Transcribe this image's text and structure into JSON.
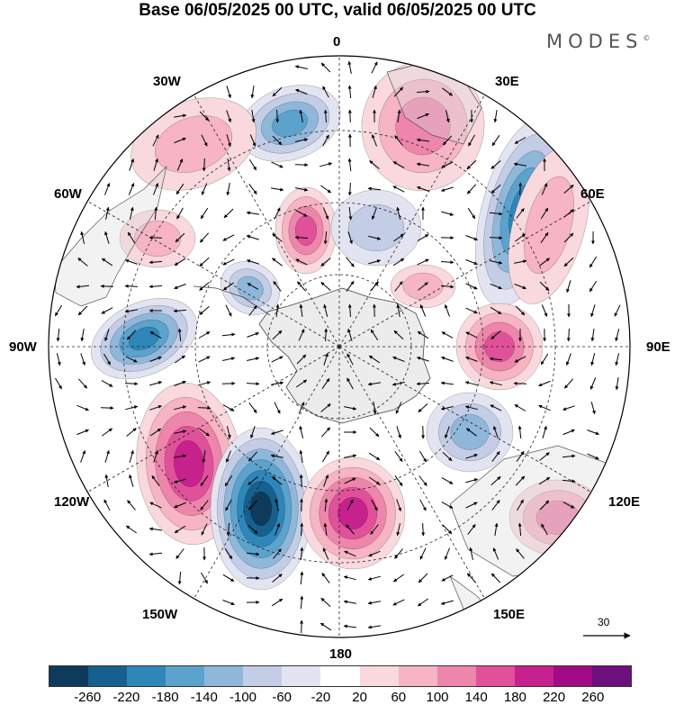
{
  "header": {
    "title": "Base 06/05/2025 00 UTC, valid 06/05/2025 00 UTC",
    "brand": "MODES",
    "brand_mark": "©"
  },
  "longitude_labels": [
    "0",
    "30E",
    "60E",
    "90E",
    "120E",
    "150E",
    "180",
    "150W",
    "120W",
    "90W",
    "60W",
    "30W"
  ],
  "reference_vector": {
    "value": "30"
  },
  "colorbar": {
    "ticks": [
      "-260",
      "-220",
      "-180",
      "-140",
      "-100",
      "-60",
      "-20",
      "20",
      "60",
      "100",
      "140",
      "180",
      "220",
      "260"
    ],
    "colors": [
      "#0e3b5c",
      "#16608f",
      "#2f86b8",
      "#5ba2cc",
      "#8fb7da",
      "#c3cde6",
      "#e3e4f1",
      "#ffffff",
      "#f9d9dd",
      "#f6b4c4",
      "#ee85ab",
      "#e0519a",
      "#c7218e",
      "#a10b85",
      "#6d0f7d"
    ]
  },
  "map": {
    "projection": "south polar stereographic",
    "features": [
      "anomaly-shading",
      "wind-vectors",
      "coastlines",
      "lat-lon-grid"
    ]
  }
}
